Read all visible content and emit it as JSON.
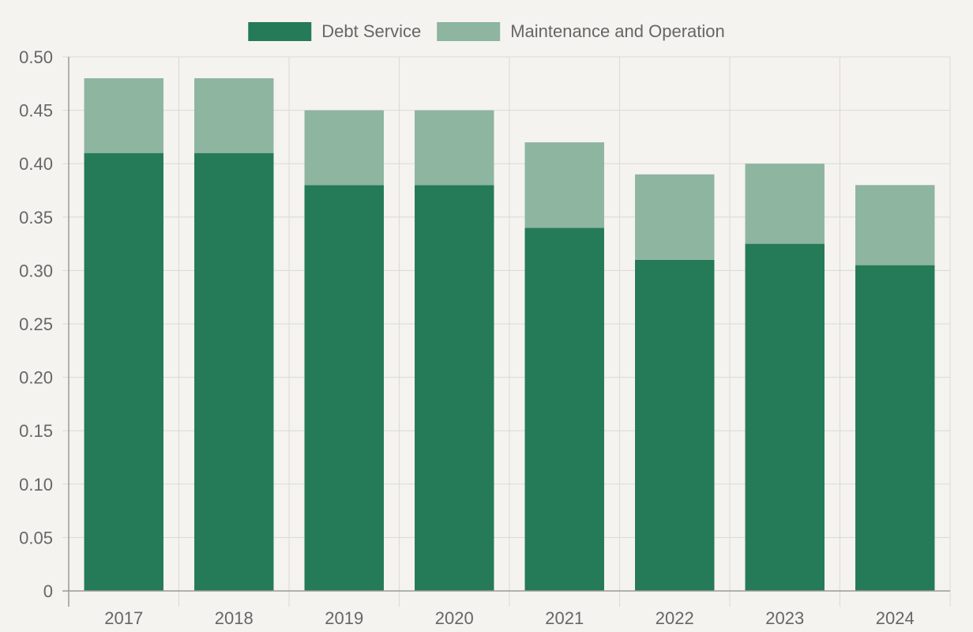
{
  "chart_data": {
    "type": "bar",
    "stacked": true,
    "categories": [
      "2017",
      "2018",
      "2019",
      "2020",
      "2021",
      "2022",
      "2023",
      "2024"
    ],
    "series": [
      {
        "name": "Debt Service",
        "color": "#257a57",
        "values": [
          0.41,
          0.41,
          0.38,
          0.38,
          0.34,
          0.31,
          0.325,
          0.305
        ]
      },
      {
        "name": "Maintenance and Operation",
        "color": "#8db5a0",
        "values": [
          0.07,
          0.07,
          0.07,
          0.07,
          0.08,
          0.08,
          0.075,
          0.075
        ]
      }
    ],
    "ylim": [
      0,
      0.5
    ],
    "yticks": [
      "0",
      "0.05",
      "0.10",
      "0.15",
      "0.20",
      "0.25",
      "0.30",
      "0.35",
      "0.40",
      "0.45",
      "0.50"
    ],
    "grid": true,
    "legend_position": "top-center"
  }
}
